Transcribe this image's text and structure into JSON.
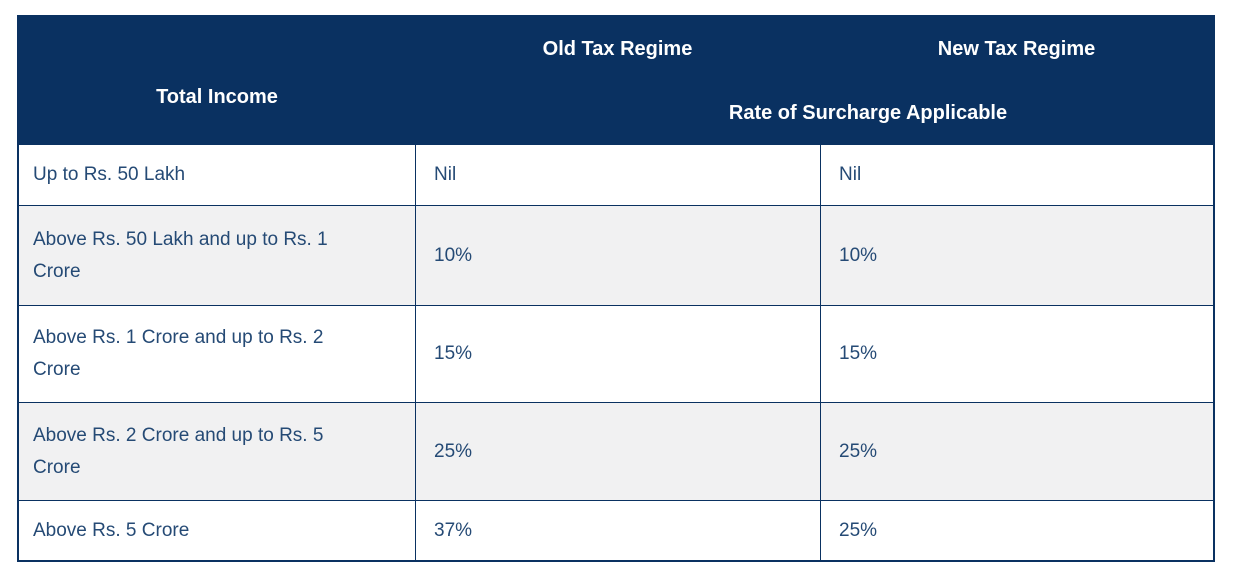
{
  "table": {
    "header": {
      "total_income": "Total Income",
      "old_regime": "Old Tax Regime",
      "new_regime": "New Tax Regime",
      "surcharge": "Rate of Surcharge Applicable"
    },
    "rows": [
      {
        "income": "Up to Rs. 50 Lakh",
        "old": "Nil",
        "new": "Nil"
      },
      {
        "income": "Above Rs. 50 Lakh and up to Rs. 1 Crore",
        "old": "10%",
        "new": "10%"
      },
      {
        "income": "Above Rs. 1 Crore and up to Rs. 2 Crore",
        "old": "15%",
        "new": "15%"
      },
      {
        "income": "Above Rs. 2 Crore and up to Rs. 5 Crore",
        "old": "25%",
        "new": "25%"
      },
      {
        "income": "Above Rs. 5 Crore",
        "old": "37%",
        "new": "25%"
      }
    ],
    "colors": {
      "header_bg": "#0a3161",
      "header_text": "#ffffff",
      "border": "#0a3161",
      "alt_row_bg": "#f1f1f2",
      "body_text": "#254a75"
    }
  },
  "chart_data": {
    "type": "table",
    "title": "Rate of Surcharge Applicable",
    "columns": [
      "Total Income",
      "Old Tax Regime",
      "New Tax Regime"
    ],
    "rows": [
      [
        "Up to Rs. 50 Lakh",
        "Nil",
        "Nil"
      ],
      [
        "Above Rs. 50 Lakh and up to Rs. 1 Crore",
        "10%",
        "10%"
      ],
      [
        "Above Rs. 1 Crore and up to Rs. 2 Crore",
        "15%",
        "15%"
      ],
      [
        "Above Rs. 2 Crore and up to Rs. 5 Crore",
        "25%",
        "25%"
      ],
      [
        "Above Rs. 5 Crore",
        "37%",
        "25%"
      ]
    ]
  }
}
